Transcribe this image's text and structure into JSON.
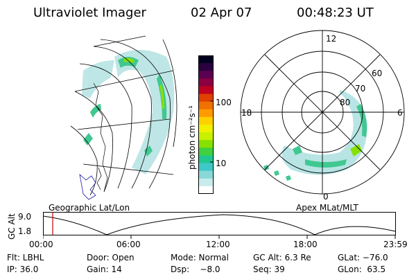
{
  "header": {
    "title": "Ultraviolet Imager",
    "date": "02 Apr 07",
    "time": "00:48:23 UT"
  },
  "colorbar": {
    "label": "photon cm⁻²s⁻¹",
    "ticks": [
      "100",
      "10"
    ],
    "colors": [
      "#000020",
      "#2a0040",
      "#5a0050",
      "#8a0040",
      "#c00020",
      "#e04000",
      "#f07000",
      "#ff9a00",
      "#ffd000",
      "#f0f000",
      "#c8f000",
      "#88e000",
      "#40d040",
      "#20c890",
      "#40c8c8",
      "#88d8d8",
      "#c8ecec",
      "#ffffff"
    ]
  },
  "polar_plot": {
    "hour_labels": [
      "12",
      "18",
      "6",
      "0"
    ],
    "lat_labels": [
      "60",
      "70",
      "80"
    ]
  },
  "orbit_panel": {
    "left_title": "Geographic Lat/Lon",
    "right_title": "Apex MLat/MLT",
    "axis_label": "GC Alt",
    "y_ticks": [
      "9.0",
      "1.8"
    ],
    "x_ticks": [
      "00:00",
      "06:00",
      "12:00",
      "18:00",
      "23:59"
    ],
    "marker_color": "#c00000"
  },
  "status": {
    "row1": [
      "Flt: LBHL",
      "Door: Open",
      "Mode: Normal",
      "GC Alt: 6.3 Re",
      "GLat: −76.0"
    ],
    "row2": [
      "IP: 36.0",
      "Gain: 14",
      "Dsp:    −8.0",
      "Seq: 39",
      "GLon:  63.5"
    ]
  }
}
